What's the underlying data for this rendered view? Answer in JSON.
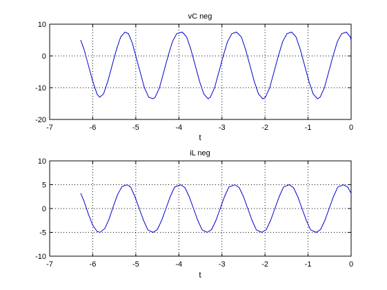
{
  "figure": {
    "background": "#ffffff",
    "line_color": "#0000cc",
    "grid_color": "#000000"
  },
  "chart_data": [
    {
      "type": "line",
      "title": "vC neg",
      "xlabel": "t",
      "ylabel": "",
      "xlim": [
        -7,
        0
      ],
      "ylim": [
        -20,
        10
      ],
      "xticks": [
        -7,
        -6,
        -5,
        -4,
        -3,
        -2,
        -1,
        0
      ],
      "yticks": [
        -20,
        -10,
        0,
        10
      ],
      "grid": true,
      "series": [
        {
          "x": [
            -6.28,
            -6.2,
            -6.1,
            -6.0,
            -5.9,
            -5.84,
            -5.75,
            -5.65,
            -5.55,
            -5.45,
            -5.35,
            -5.25,
            -5.17,
            -5.08,
            -5.0,
            -4.9,
            -4.8,
            -4.7,
            -4.6,
            -4.55,
            -4.45,
            -4.35,
            -4.25,
            -4.15,
            -4.05,
            -3.92,
            -3.82,
            -3.72,
            -3.62,
            -3.52,
            -3.42,
            -3.32,
            -3.27,
            -3.17,
            -3.07,
            -2.97,
            -2.87,
            -2.77,
            -2.66,
            -2.55,
            -2.45,
            -2.35,
            -2.25,
            -2.15,
            -2.05,
            -1.99,
            -1.89,
            -1.79,
            -1.69,
            -1.59,
            -1.49,
            -1.38,
            -1.28,
            -1.18,
            -1.08,
            -0.98,
            -0.88,
            -0.78,
            -0.72,
            -0.62,
            -0.52,
            -0.42,
            -0.32,
            -0.22,
            -0.11,
            -0.02,
            0.0
          ],
          "y": [
            5,
            2,
            -3,
            -8,
            -12,
            -13,
            -12,
            -8,
            -3,
            2,
            6,
            7.5,
            7,
            4,
            0,
            -5,
            -10,
            -13,
            -13.5,
            -13,
            -10,
            -5,
            0,
            4.5,
            7,
            7.5,
            6,
            2,
            -3,
            -8,
            -12,
            -13.5,
            -13,
            -10,
            -5,
            0,
            4.5,
            7,
            7.5,
            6,
            2,
            -3,
            -8,
            -12,
            -13.5,
            -13,
            -10,
            -5,
            0,
            4.5,
            7,
            7.5,
            6,
            2,
            -3,
            -8,
            -12,
            -13.5,
            -13,
            -10,
            -5,
            0,
            4.5,
            7,
            7.5,
            6,
            5
          ]
        }
      ]
    },
    {
      "type": "line",
      "title": "iL neg",
      "xlabel": "t",
      "ylabel": "",
      "xlim": [
        -7,
        0
      ],
      "ylim": [
        -10,
        10
      ],
      "xticks": [
        -7,
        -6,
        -5,
        -4,
        -3,
        -2,
        -1,
        0
      ],
      "yticks": [
        -10,
        -5,
        0,
        5,
        10
      ],
      "grid": true,
      "series": [
        {
          "x": [
            -6.28,
            -6.2,
            -6.1,
            -6.0,
            -5.9,
            -5.83,
            -5.72,
            -5.62,
            -5.52,
            -5.42,
            -5.32,
            -5.2,
            -5.12,
            -5.02,
            -4.92,
            -4.82,
            -4.72,
            -4.6,
            -4.5,
            -4.4,
            -4.3,
            -4.2,
            -4.1,
            -3.96,
            -3.86,
            -3.76,
            -3.66,
            -3.56,
            -3.46,
            -3.34,
            -3.24,
            -3.14,
            -3.04,
            -2.94,
            -2.84,
            -2.7,
            -2.6,
            -2.5,
            -2.4,
            -2.3,
            -2.2,
            -2.07,
            -1.97,
            -1.87,
            -1.77,
            -1.67,
            -1.57,
            -1.44,
            -1.34,
            -1.24,
            -1.14,
            -1.04,
            -0.94,
            -0.81,
            -0.71,
            -0.61,
            -0.51,
            -0.41,
            -0.31,
            -0.18,
            -0.08,
            0.0
          ],
          "y": [
            3.2,
            1.5,
            -1.2,
            -3.5,
            -4.8,
            -5,
            -4.2,
            -2.2,
            0.5,
            3,
            4.6,
            5,
            4.5,
            2.5,
            0,
            -2.5,
            -4.5,
            -5,
            -4.4,
            -2.5,
            0,
            2.5,
            4.5,
            5,
            4.4,
            2.5,
            0,
            -2.5,
            -4.5,
            -5,
            -4.4,
            -2.5,
            0,
            2.5,
            4.5,
            5,
            4.4,
            2.5,
            0,
            -2.5,
            -4.5,
            -5,
            -4.4,
            -2.5,
            0,
            2.5,
            4.5,
            5,
            4.4,
            2.5,
            0,
            -2.5,
            -4.5,
            -5,
            -4.4,
            -2.5,
            0,
            2.5,
            4.5,
            5,
            4.5,
            3.2
          ]
        }
      ]
    }
  ]
}
